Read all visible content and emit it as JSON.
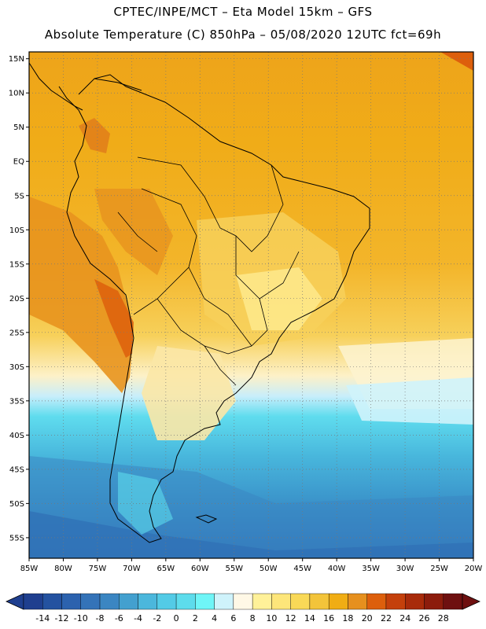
{
  "header": {
    "line1": "CPTEC/INPE/MCT –  Eta Model 15km – GFS",
    "line2": "Absolute Temperature (C) 850hPa – 05/08/2020 12UTC fct=69h"
  },
  "map": {
    "lon_range": [
      -85,
      -20
    ],
    "lat_range": [
      -58,
      16
    ],
    "lat_ticks": [
      {
        "value": 15,
        "label": "15N"
      },
      {
        "value": 10,
        "label": "10N"
      },
      {
        "value": 5,
        "label": "5N"
      },
      {
        "value": 0,
        "label": "EQ"
      },
      {
        "value": -5,
        "label": "5S"
      },
      {
        "value": -10,
        "label": "10S"
      },
      {
        "value": -15,
        "label": "15S"
      },
      {
        "value": -20,
        "label": "20S"
      },
      {
        "value": -25,
        "label": "25S"
      },
      {
        "value": -30,
        "label": "30S"
      },
      {
        "value": -35,
        "label": "35S"
      },
      {
        "value": -40,
        "label": "40S"
      },
      {
        "value": -45,
        "label": "45S"
      },
      {
        "value": -50,
        "label": "50S"
      },
      {
        "value": -55,
        "label": "55S"
      }
    ],
    "lon_ticks": [
      {
        "value": -85,
        "label": "85W"
      },
      {
        "value": -80,
        "label": "80W"
      },
      {
        "value": -75,
        "label": "75W"
      },
      {
        "value": -70,
        "label": "70W"
      },
      {
        "value": -65,
        "label": "65W"
      },
      {
        "value": -60,
        "label": "60W"
      },
      {
        "value": -55,
        "label": "55W"
      },
      {
        "value": -50,
        "label": "50W"
      },
      {
        "value": -45,
        "label": "45W"
      },
      {
        "value": -40,
        "label": "40W"
      },
      {
        "value": -35,
        "label": "35W"
      },
      {
        "value": -30,
        "label": "30W"
      },
      {
        "value": -25,
        "label": "25W"
      },
      {
        "value": -20,
        "label": "20W"
      }
    ],
    "grid": true,
    "grid_style": "dotted"
  },
  "colorbar": {
    "labels": [
      "-14",
      "-12",
      "-10",
      "-8",
      "-6",
      "-4",
      "-2",
      "0",
      "2",
      "4",
      "6",
      "8",
      "10",
      "12",
      "14",
      "16",
      "18",
      "20",
      "22",
      "24",
      "26",
      "28"
    ],
    "colors": [
      "#1f3f8f",
      "#2452a0",
      "#2c62ae",
      "#3473b8",
      "#3b86c2",
      "#43a0cf",
      "#4bb7dc",
      "#53cbe6",
      "#5ddcec",
      "#6ff5f7",
      "#cff3fb",
      "#fff8e6",
      "#fff199",
      "#fde67a",
      "#f9d957",
      "#f3c43a",
      "#f0ad14",
      "#e6901e",
      "#dd5f0c",
      "#c4400b",
      "#a82b0a",
      "#8c1c0c",
      "#6e1010"
    ]
  }
}
